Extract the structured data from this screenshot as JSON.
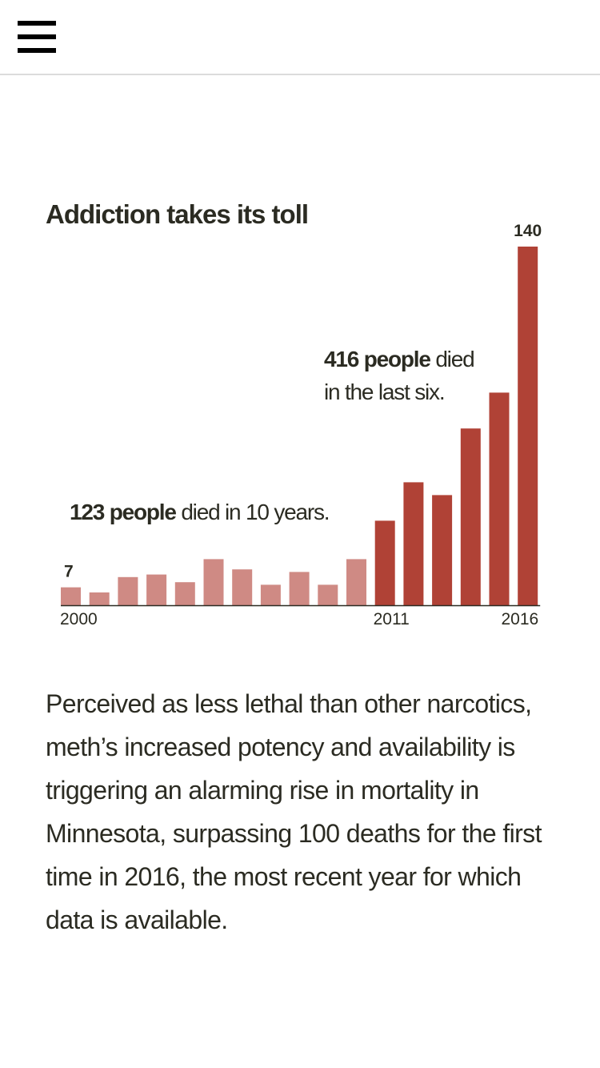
{
  "header": {
    "menu_icon": "hamburger-menu-icon"
  },
  "chart_data": {
    "type": "bar",
    "title": "Addiction takes its toll",
    "categories": [
      "2000",
      "2001",
      "2002",
      "2003",
      "2004",
      "2005",
      "2006",
      "2007",
      "2008",
      "2009",
      "2010",
      "2011",
      "2012",
      "2013",
      "2014",
      "2015",
      "2016"
    ],
    "values": [
      7,
      5,
      11,
      12,
      9,
      18,
      14,
      8,
      13,
      8,
      18,
      33,
      48,
      43,
      69,
      83,
      140
    ],
    "tick_labels": [
      "2000",
      "2011",
      "2016"
    ],
    "data_labels": {
      "first": "7",
      "last": "140"
    },
    "colors": {
      "period_1": "#cf8a84",
      "period_2": "#b04236"
    },
    "annotations": {
      "period_1": {
        "bold": "123 people",
        "rest": " died in 10 years."
      },
      "period_2": {
        "bold": "416 people",
        "rest_line1": " died",
        "rest_line2": "in the last six."
      }
    },
    "ylim": [
      0,
      140
    ],
    "grid": false,
    "legend": "none"
  },
  "article": {
    "paragraph": "Perceived as less lethal than other narcotics, meth’s increased potency and availability is triggering an alarming rise in mortality in Minnesota, surpassing 100 deaths for the first time in 2016, the most recent year for which data is available."
  }
}
